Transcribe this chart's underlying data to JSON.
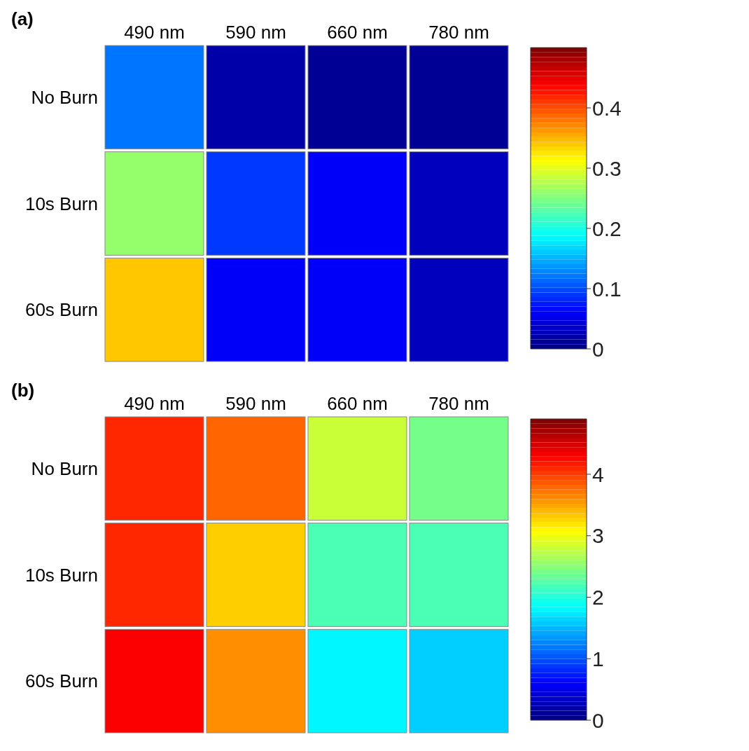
{
  "chart_data": [
    {
      "type": "heatmap",
      "title": "(a)",
      "categories": [
        "490 nm",
        "590 nm",
        "660 nm",
        "780 nm"
      ],
      "y_categories": [
        "No Burn",
        "10s Burn",
        "60s Burn"
      ],
      "cells": [
        [
          0.12,
          0.02,
          0.01,
          0.01
        ],
        [
          0.26,
          0.09,
          0.06,
          0.03
        ],
        [
          0.34,
          0.06,
          0.06,
          0.03
        ]
      ],
      "clim": [
        0,
        0.5
      ],
      "cticks": [
        0,
        0.1,
        0.2,
        0.3,
        0.4
      ]
    },
    {
      "type": "heatmap",
      "title": "(b)",
      "categories": [
        "490 nm",
        "590 nm",
        "660 nm",
        "780 nm"
      ],
      "y_categories": [
        "No Burn",
        "10s Burn",
        "60s Burn"
      ],
      "cells": [
        [
          4.1,
          3.8,
          2.8,
          2.4
        ],
        [
          4.1,
          3.3,
          2.2,
          2.2
        ],
        [
          4.3,
          3.6,
          1.8,
          1.6
        ]
      ],
      "clim": [
        0,
        4.9
      ],
      "cticks": [
        0,
        1,
        2,
        3,
        4
      ]
    }
  ]
}
